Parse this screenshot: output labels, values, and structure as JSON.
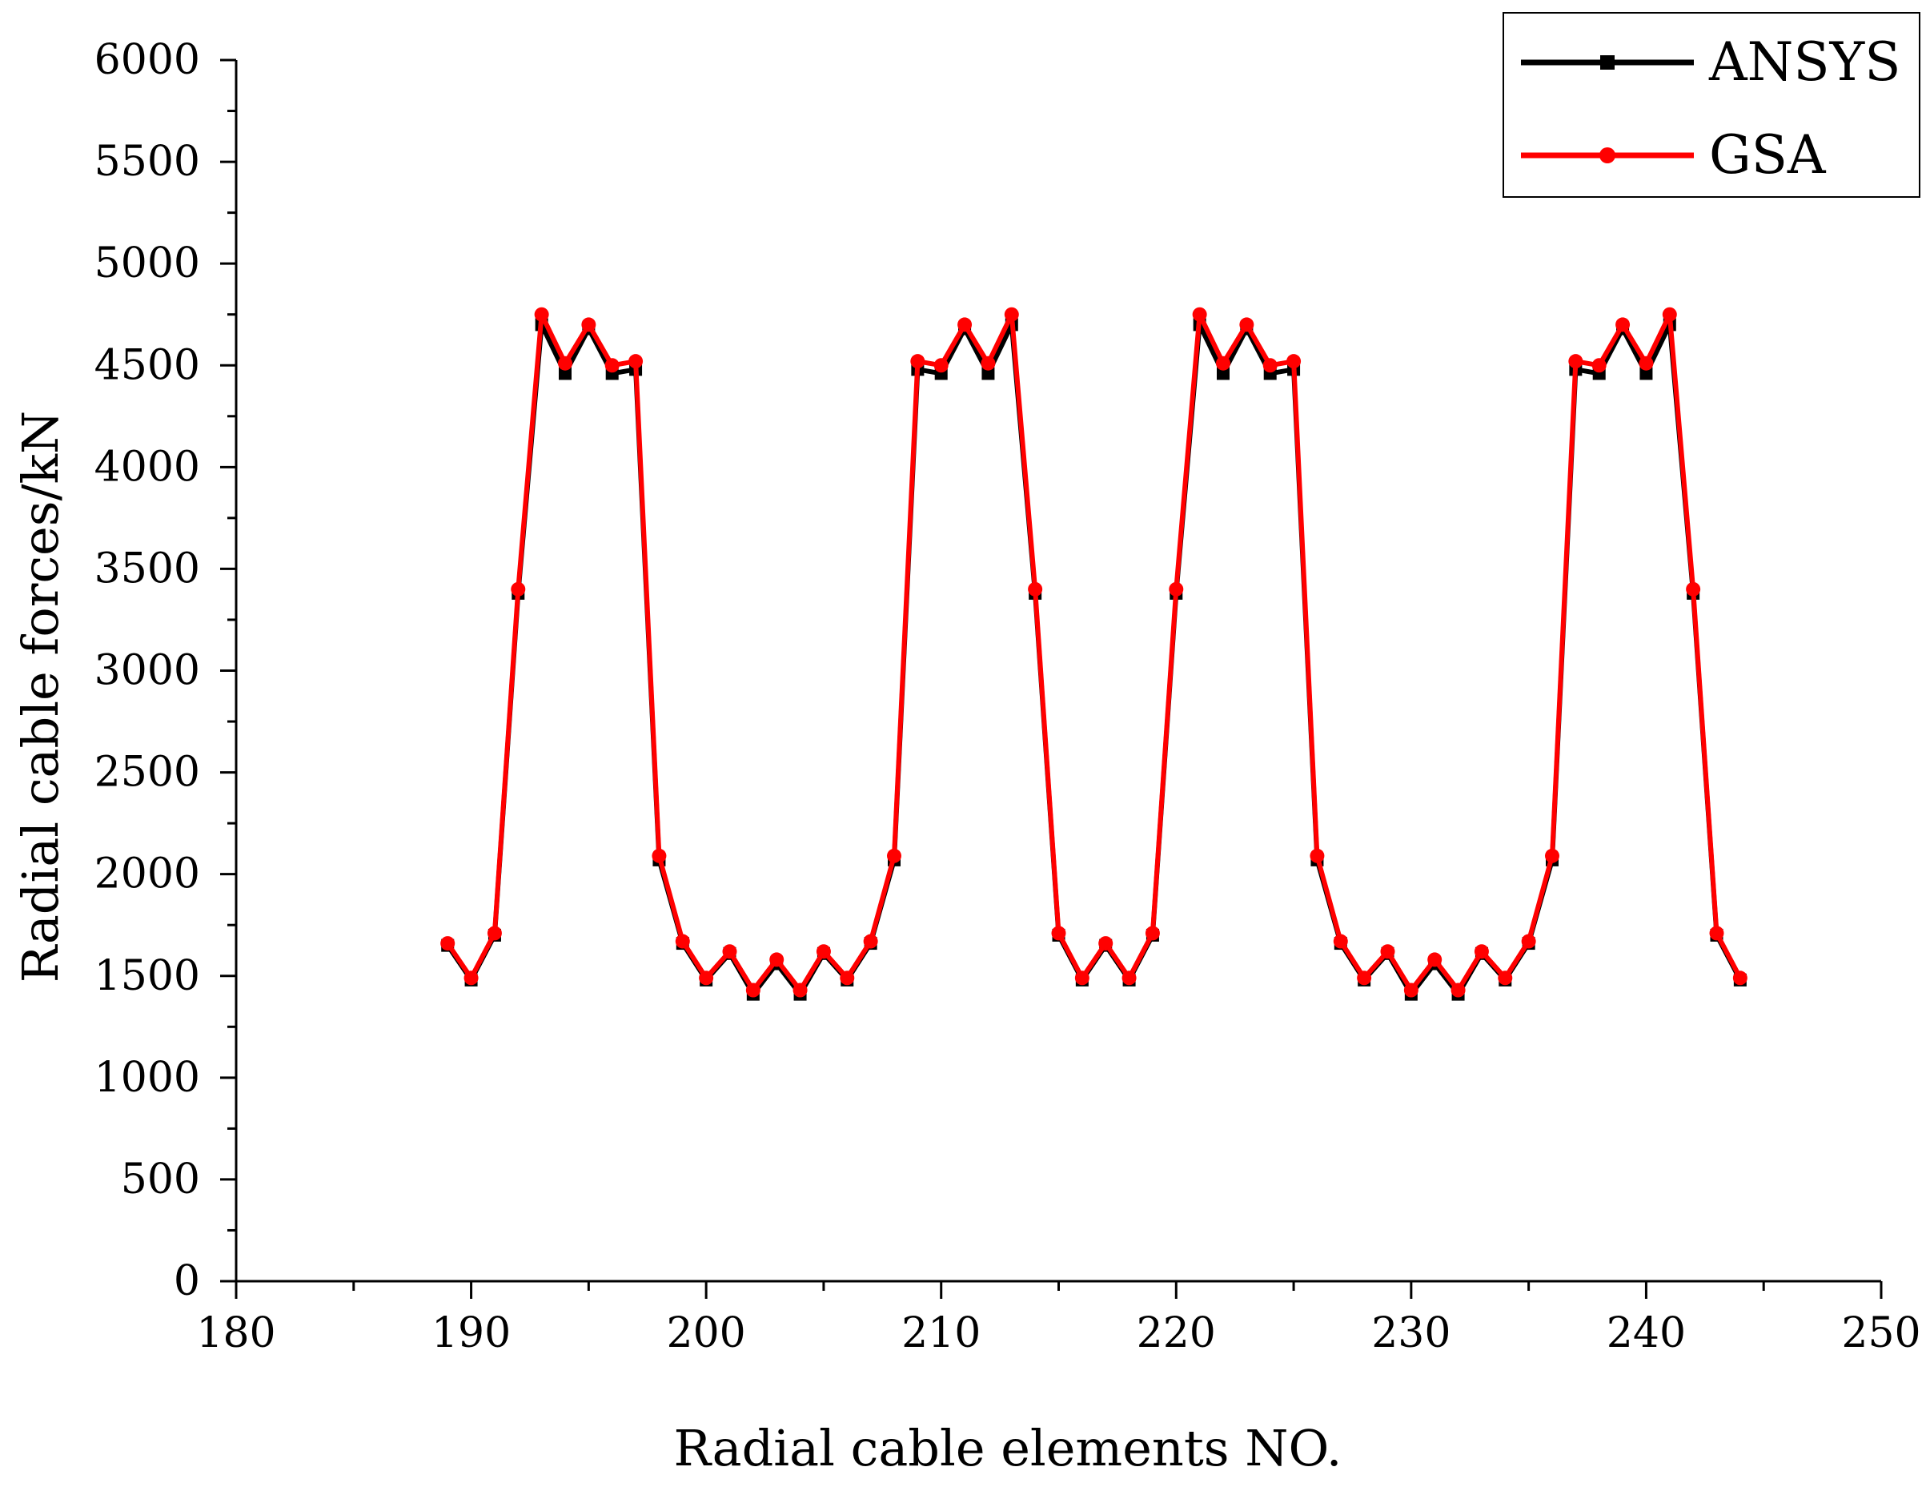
{
  "chart_data": {
    "type": "line",
    "title": "",
    "xlabel": "Radial cable elements NO.",
    "ylabel": "Radial cable forces/kN",
    "xlim": [
      180,
      250
    ],
    "ylim": [
      0,
      6000
    ],
    "x_ticks": [
      180,
      190,
      200,
      210,
      220,
      230,
      240,
      250
    ],
    "x_tick_labels": [
      "180",
      "190",
      "200",
      "210",
      "220",
      "230",
      "240",
      "250"
    ],
    "y_ticks": [
      0,
      500,
      1000,
      1500,
      2000,
      2500,
      3000,
      3500,
      4000,
      4500,
      5000,
      5500,
      6000
    ],
    "y_tick_labels": [
      "0",
      "500",
      "1000",
      "1500",
      "2000",
      "2500",
      "3000",
      "3500",
      "4000",
      "4500",
      "5000",
      "5500",
      "6000"
    ],
    "grid": false,
    "legend_position": "top-right",
    "x": [
      189,
      190,
      191,
      192,
      193,
      194,
      195,
      196,
      197,
      198,
      199,
      200,
      201,
      202,
      203,
      204,
      205,
      206,
      207,
      208,
      209,
      210,
      211,
      212,
      213,
      214,
      215,
      216,
      217,
      218,
      219,
      220,
      221,
      222,
      223,
      224,
      225,
      226,
      227,
      228,
      229,
      230,
      231,
      232,
      233,
      234,
      235,
      236,
      237,
      238,
      239,
      240,
      241,
      242,
      243,
      244
    ],
    "series": [
      {
        "name": "ANSYS",
        "color": "#000000",
        "marker": "square",
        "values": [
          1650,
          1480,
          1700,
          3380,
          4700,
          4460,
          4680,
          4460,
          4480,
          2070,
          1660,
          1480,
          1610,
          1410,
          1560,
          1410,
          1610,
          1480,
          1660,
          2070,
          4480,
          4460,
          4680,
          4460,
          4700,
          3380,
          1700,
          1480,
          1650,
          1480,
          1700,
          3380,
          4700,
          4460,
          4680,
          4460,
          4480,
          2070,
          1660,
          1480,
          1610,
          1410,
          1560,
          1410,
          1610,
          1480,
          1660,
          2070,
          4480,
          4460,
          4680,
          4460,
          4700,
          3380,
          1700,
          1480
        ]
      },
      {
        "name": "GSA",
        "color": "#ff0000",
        "marker": "circle",
        "values": [
          1660,
          1490,
          1710,
          3400,
          4750,
          4510,
          4700,
          4500,
          4520,
          2090,
          1670,
          1490,
          1620,
          1430,
          1580,
          1430,
          1620,
          1490,
          1670,
          2090,
          4520,
          4500,
          4700,
          4510,
          4750,
          3400,
          1710,
          1490,
          1660,
          1490,
          1710,
          3400,
          4750,
          4510,
          4700,
          4500,
          4520,
          2090,
          1670,
          1490,
          1620,
          1430,
          1580,
          1430,
          1620,
          1490,
          1670,
          2090,
          4520,
          4500,
          4700,
          4510,
          4750,
          3400,
          1710,
          1490
        ]
      }
    ]
  }
}
